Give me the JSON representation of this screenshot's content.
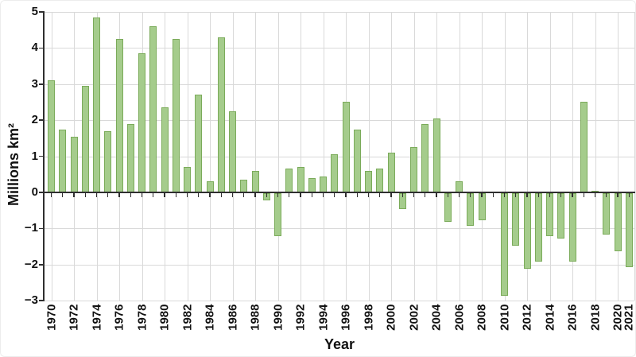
{
  "chart": {
    "ylabel": "Millions km²",
    "xlabel": "Year"
  },
  "chart_data": {
    "type": "bar",
    "title": "",
    "xlabel": "Year",
    "ylabel": "Millions km²",
    "ylim": [
      -3,
      5
    ],
    "grid": true,
    "legend": "none",
    "bar_color": "#a5cc8c",
    "bar_border_color": "#7bab5a",
    "axis_color": "#2f2f2f",
    "gridline_color": "#d9d9d9",
    "x": [
      1970,
      1971,
      1972,
      1973,
      1974,
      1975,
      1976,
      1977,
      1978,
      1979,
      1980,
      1981,
      1982,
      1983,
      1984,
      1985,
      1986,
      1987,
      1988,
      1989,
      1990,
      1991,
      1992,
      1993,
      1994,
      1995,
      1996,
      1997,
      1998,
      1999,
      2000,
      2001,
      2002,
      2003,
      2004,
      2005,
      2006,
      2007,
      2008,
      2009,
      2010,
      2011,
      2012,
      2013,
      2014,
      2015,
      2016,
      2017,
      2018,
      2019,
      2020,
      2021
    ],
    "values": [
      3.1,
      1.75,
      1.55,
      2.95,
      4.85,
      1.7,
      4.25,
      1.9,
      3.85,
      4.6,
      2.35,
      4.25,
      0.7,
      2.7,
      0.3,
      4.3,
      2.25,
      0.35,
      0.6,
      -0.2,
      -1.2,
      0.65,
      0.7,
      0.4,
      0.45,
      1.05,
      2.5,
      1.75,
      0.6,
      0.65,
      1.1,
      -0.45,
      1.25,
      1.9,
      2.05,
      -0.8,
      0.3,
      -0.9,
      -0.75,
      0,
      -2.85,
      -1.45,
      -2.1,
      -1.9,
      -1.2,
      -1.25,
      -1.9,
      2.5,
      0.05,
      -1.15,
      -1.6,
      -2.05
    ],
    "y_ticks": [
      5,
      4,
      3,
      2,
      1,
      0,
      -1,
      -2,
      -3
    ],
    "x_tick_labels": [
      "1970",
      "1972",
      "1974",
      "1976",
      "1978",
      "1980",
      "1982",
      "1984",
      "1986",
      "1988",
      "1990",
      "1992",
      "1994",
      "1996",
      "1998",
      "2000",
      "2002",
      "2004",
      "2006",
      "2008",
      "2010",
      "2012",
      "2014",
      "2016",
      "2018",
      "2020",
      "2021"
    ]
  }
}
